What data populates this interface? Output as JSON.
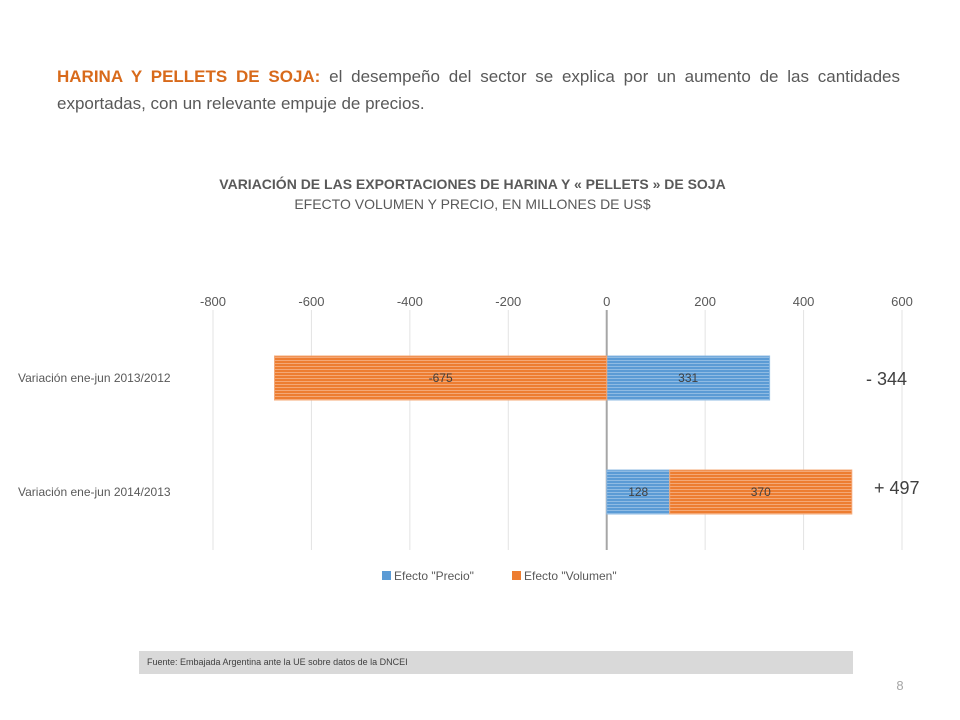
{
  "intro": {
    "lead": "HARINA Y PELLETS DE SOJA:",
    "text": " el desempeño del sector se explica por un aumento de las cantidades exportadas, con un relevante empuje de precios."
  },
  "chart_title": {
    "title": "VARIACIÓN DE LAS EXPORTACIONES DE HARINA Y « PELLETS » DE SOJA",
    "subtitle": "EFECTO VOLUMEN Y PRECIO, EN MILLONES DE US$"
  },
  "chart_data": {
    "type": "bar",
    "orientation": "horizontal",
    "stacked": true,
    "xlim": [
      -800,
      600
    ],
    "xticks": [
      "-800",
      "-600",
      "-400",
      "-200",
      "0",
      "200",
      "400",
      "600"
    ],
    "xtick_values": [
      -800,
      -600,
      -400,
      -200,
      0,
      200,
      400,
      600
    ],
    "categories": [
      "Variación ene-jun 2013/2012",
      "Variación ene-jun 2014/2013"
    ],
    "series": [
      {
        "name": "Efecto \"Precio\"",
        "color": "#5b9bd5",
        "values": [
          331,
          128
        ],
        "labels": [
          "331",
          "128"
        ]
      },
      {
        "name": "Efecto \"Volumen\"",
        "color": "#ed7d31",
        "values": [
          -675,
          370
        ],
        "labels": [
          "-675",
          "370"
        ]
      }
    ],
    "totals": [
      "- 344",
      "+ 497"
    ],
    "grid": true,
    "legend_position": "bottom"
  },
  "source": "Fuente: Embajada Argentina ante la UE sobre datos de la DNCEI",
  "page_number": "8"
}
